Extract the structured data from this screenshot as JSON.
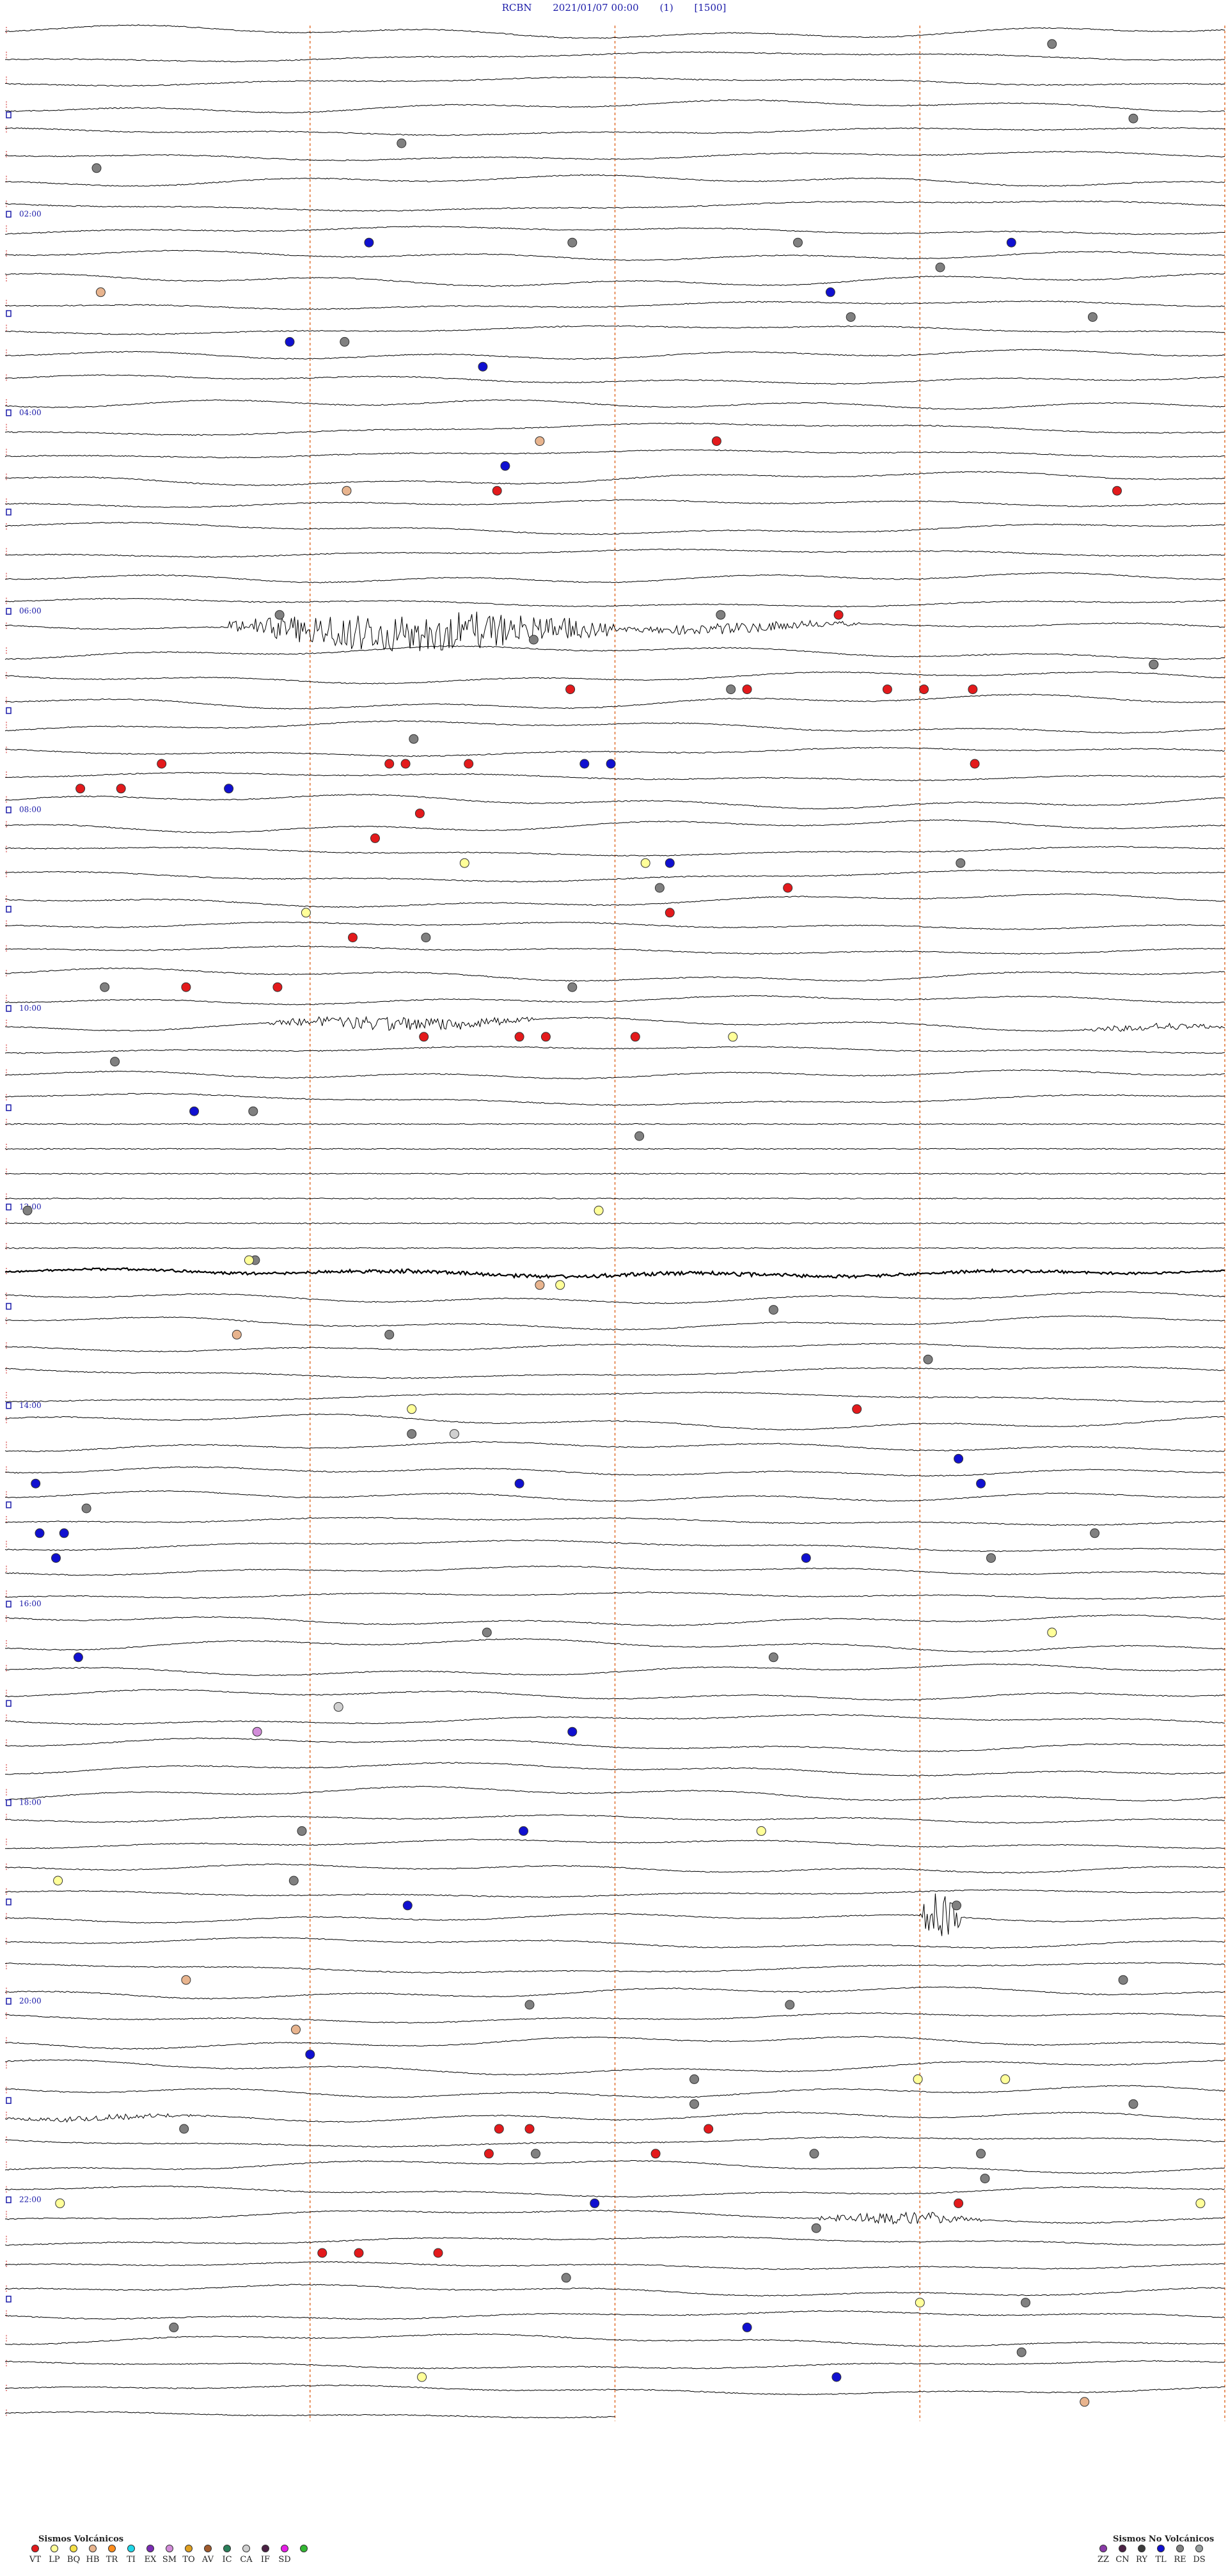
{
  "header": {
    "station": "RCBN",
    "datetime": "2021/01/07 00:00",
    "channel": "(1)",
    "scale": "[1500]"
  },
  "chart_data": {
    "type": "helicorder",
    "rows_per_hour": 4,
    "total_rows": 96,
    "hour_labels": [
      "02:00",
      "04:00",
      "06:00",
      "08:00",
      "10:00",
      "12:00",
      "14:00",
      "16:00",
      "18:00",
      "20:00",
      "22:00"
    ],
    "hour_label_rows": [
      8,
      16,
      24,
      32,
      40,
      48,
      56,
      64,
      72,
      80,
      88
    ],
    "minute_gridlines": [
      15,
      30,
      45,
      60
    ],
    "active_segments": [
      {
        "row": 24,
        "start_min": 11,
        "end_min": 30,
        "amp": 22
      },
      {
        "row": 24,
        "start_min": 30,
        "end_min": 42,
        "amp": 6
      },
      {
        "row": 40,
        "start_min": 13,
        "end_min": 26,
        "amp": 8
      },
      {
        "row": 40,
        "start_min": 53,
        "end_min": 60,
        "amp": 4
      },
      {
        "row": 50,
        "start_min": 0,
        "end_min": 60,
        "amp": 2
      },
      {
        "row": 76,
        "start_min": 45,
        "end_min": 47,
        "amp": 28
      },
      {
        "row": 88,
        "start_min": 40,
        "end_min": 48,
        "amp": 7
      },
      {
        "row": 84,
        "start_min": 0,
        "end_min": 10,
        "amp": 3
      }
    ],
    "events": [
      {
        "row": 1,
        "min": 51.5,
        "type": "RE"
      },
      {
        "row": 4,
        "min": 55.5,
        "type": "RE"
      },
      {
        "row": 5,
        "min": 19.5,
        "type": "RE"
      },
      {
        "row": 6,
        "min": 4.5,
        "type": "RE"
      },
      {
        "row": 9,
        "min": 39,
        "type": "RE"
      },
      {
        "row": 9,
        "min": 17.9,
        "type": "TL"
      },
      {
        "row": 9,
        "min": 27.9,
        "type": "RE"
      },
      {
        "row": 9,
        "min": 49.5,
        "type": "TL"
      },
      {
        "row": 10,
        "min": 46,
        "type": "RE"
      },
      {
        "row": 11,
        "min": 4.7,
        "type": "HB"
      },
      {
        "row": 11,
        "min": 40.6,
        "type": "TL"
      },
      {
        "row": 12,
        "min": 41.6,
        "type": "RE"
      },
      {
        "row": 12,
        "min": 53.5,
        "type": "RE"
      },
      {
        "row": 13,
        "min": 14,
        "type": "TL"
      },
      {
        "row": 13,
        "min": 16.7,
        "type": "RE"
      },
      {
        "row": 14,
        "min": 23.5,
        "type": "TL"
      },
      {
        "row": 17,
        "min": 26.3,
        "type": "HB"
      },
      {
        "row": 17,
        "min": 35,
        "type": "VT"
      },
      {
        "row": 18,
        "min": 24.6,
        "type": "TL"
      },
      {
        "row": 19,
        "min": 24.2,
        "type": "VT"
      },
      {
        "row": 19,
        "min": 16.8,
        "type": "HB"
      },
      {
        "row": 19,
        "min": 54.7,
        "type": "VT"
      },
      {
        "row": 24,
        "min": 13.5,
        "type": "RE"
      },
      {
        "row": 24,
        "min": 35.2,
        "type": "RE"
      },
      {
        "row": 24,
        "min": 41,
        "type": "VT"
      },
      {
        "row": 25,
        "min": 26,
        "type": "RE"
      },
      {
        "row": 26,
        "min": 56.5,
        "type": "VT"
      },
      {
        "row": 26,
        "min": 56.5,
        "type": "RE"
      },
      {
        "row": 27,
        "min": 27.8,
        "type": "VT"
      },
      {
        "row": 27,
        "min": 35.7,
        "type": "RE"
      },
      {
        "row": 27,
        "min": 36.5,
        "type": "VT"
      },
      {
        "row": 27,
        "min": 43.4,
        "type": "VT"
      },
      {
        "row": 27,
        "min": 45.2,
        "type": "VT"
      },
      {
        "row": 27,
        "min": 47.6,
        "type": "VT"
      },
      {
        "row": 29,
        "min": 20.1,
        "type": "RE"
      },
      {
        "row": 30,
        "min": 7.7,
        "type": "VT"
      },
      {
        "row": 30,
        "min": 19.7,
        "type": "VT"
      },
      {
        "row": 30,
        "min": 28.5,
        "type": "TL"
      },
      {
        "row": 30,
        "min": 18.9,
        "type": "VT"
      },
      {
        "row": 30,
        "min": 22.8,
        "type": "VT"
      },
      {
        "row": 30,
        "min": 29.8,
        "type": "TL"
      },
      {
        "row": 30,
        "min": 47.7,
        "type": "VT"
      },
      {
        "row": 31,
        "min": 3.7,
        "type": "VT"
      },
      {
        "row": 31,
        "min": 5.7,
        "type": "VT"
      },
      {
        "row": 31,
        "min": 11,
        "type": "TL"
      },
      {
        "row": 32,
        "min": 20.4,
        "type": "VT"
      },
      {
        "row": 33,
        "min": 18.2,
        "type": "VT"
      },
      {
        "row": 34,
        "min": 22.6,
        "type": "LP"
      },
      {
        "row": 34,
        "min": 31.5,
        "type": "LP"
      },
      {
        "row": 34,
        "min": 32.7,
        "type": "TL"
      },
      {
        "row": 34,
        "min": 47,
        "type": "RE"
      },
      {
        "row": 35,
        "min": 32.2,
        "type": "RE"
      },
      {
        "row": 35,
        "min": 38.5,
        "type": "VT"
      },
      {
        "row": 36,
        "min": 14.8,
        "type": "LP"
      },
      {
        "row": 36,
        "min": 32.7,
        "type": "VT"
      },
      {
        "row": 37,
        "min": 17.1,
        "type": "VT"
      },
      {
        "row": 37,
        "min": 20.7,
        "type": "RE"
      },
      {
        "row": 39,
        "min": 4.9,
        "type": "RE"
      },
      {
        "row": 39,
        "min": 8.9,
        "type": "VT"
      },
      {
        "row": 39,
        "min": 13.4,
        "type": "VT"
      },
      {
        "row": 39,
        "min": 27.9,
        "type": "RE"
      },
      {
        "row": 41,
        "min": 20.6,
        "type": "VT"
      },
      {
        "row": 41,
        "min": 25.3,
        "type": "VT"
      },
      {
        "row": 41,
        "min": 26.6,
        "type": "VT"
      },
      {
        "row": 41,
        "min": 31,
        "type": "VT"
      },
      {
        "row": 41,
        "min": 35.8,
        "type": "LP"
      },
      {
        "row": 42,
        "min": 5.4,
        "type": "RE"
      },
      {
        "row": 44,
        "min": 9.3,
        "type": "TL"
      },
      {
        "row": 44,
        "min": 12.2,
        "type": "RE"
      },
      {
        "row": 45,
        "min": 31.2,
        "type": "RE"
      },
      {
        "row": 48,
        "min": 1.1,
        "type": "RE"
      },
      {
        "row": 48,
        "min": 29.2,
        "type": "LP"
      },
      {
        "row": 50,
        "min": 12.3,
        "type": "RE"
      },
      {
        "row": 50,
        "min": 12,
        "type": "LP"
      },
      {
        "row": 51,
        "min": 26.3,
        "type": "HB"
      },
      {
        "row": 51,
        "min": 27.3,
        "type": "LP"
      },
      {
        "row": 52,
        "min": 37.8,
        "type": "RE"
      },
      {
        "row": 53,
        "min": 11.4,
        "type": "HB"
      },
      {
        "row": 53,
        "min": 18.9,
        "type": "RE"
      },
      {
        "row": 54,
        "min": 45.4,
        "type": "RE"
      },
      {
        "row": 56,
        "min": 20,
        "type": "LP"
      },
      {
        "row": 56,
        "min": 41.9,
        "type": "VT"
      },
      {
        "row": 57,
        "min": 20,
        "type": "RE"
      },
      {
        "row": 57,
        "min": 22.1,
        "type": "CA"
      },
      {
        "row": 58,
        "min": 46.9,
        "type": "TL"
      },
      {
        "row": 59,
        "min": 1.5,
        "type": "TL"
      },
      {
        "row": 59,
        "min": 25.3,
        "type": "TL"
      },
      {
        "row": 59,
        "min": 48,
        "type": "TL"
      },
      {
        "row": 60,
        "min": 4,
        "type": "RE"
      },
      {
        "row": 61,
        "min": 1.7,
        "type": "TL"
      },
      {
        "row": 61,
        "min": 2.9,
        "type": "TL"
      },
      {
        "row": 61,
        "min": 53.6,
        "type": "RE"
      },
      {
        "row": 62,
        "min": 39.4,
        "type": "TL"
      },
      {
        "row": 62,
        "min": 48.5,
        "type": "RE"
      },
      {
        "row": 62,
        "min": 2.5,
        "type": "TL"
      },
      {
        "row": 65,
        "min": 23.7,
        "type": "RE"
      },
      {
        "row": 65,
        "min": 51.5,
        "type": "LP"
      },
      {
        "row": 66,
        "min": 3.6,
        "type": "TL"
      },
      {
        "row": 66,
        "min": 37.8,
        "type": "RE"
      },
      {
        "row": 68,
        "min": 16.4,
        "type": "CA"
      },
      {
        "row": 69,
        "min": 12.4,
        "type": "SM"
      },
      {
        "row": 69,
        "min": 27.9,
        "type": "TL"
      },
      {
        "row": 73,
        "min": 14.6,
        "type": "RE"
      },
      {
        "row": 73,
        "min": 25.5,
        "type": "TL"
      },
      {
        "row": 73,
        "min": 37.2,
        "type": "LP"
      },
      {
        "row": 75,
        "min": 2.6,
        "type": "LP"
      },
      {
        "row": 75,
        "min": 14.2,
        "type": "RE"
      },
      {
        "row": 76,
        "min": 19.8,
        "type": "TL"
      },
      {
        "row": 76,
        "min": 46.8,
        "type": "RE"
      },
      {
        "row": 79,
        "min": 8.9,
        "type": "HB"
      },
      {
        "row": 79,
        "min": 55,
        "type": "RE"
      },
      {
        "row": 80,
        "min": 25.8,
        "type": "RE"
      },
      {
        "row": 80,
        "min": 38.6,
        "type": "RE"
      },
      {
        "row": 81,
        "min": 14.3,
        "type": "HB"
      },
      {
        "row": 82,
        "min": 15,
        "type": "TL"
      },
      {
        "row": 83,
        "min": 33.9,
        "type": "RE"
      },
      {
        "row": 83,
        "min": 44.9,
        "type": "LP"
      },
      {
        "row": 83,
        "min": 49.2,
        "type": "LP"
      },
      {
        "row": 84,
        "min": 33.9,
        "type": "RE"
      },
      {
        "row": 84,
        "min": 55.5,
        "type": "RE"
      },
      {
        "row": 85,
        "min": 8.8,
        "type": "RE"
      },
      {
        "row": 85,
        "min": 24.3,
        "type": "VT"
      },
      {
        "row": 85,
        "min": 25.8,
        "type": "VT"
      },
      {
        "row": 85,
        "min": 34.6,
        "type": "VT"
      },
      {
        "row": 86,
        "min": 23.8,
        "type": "VT"
      },
      {
        "row": 86,
        "min": 26.1,
        "type": "RE"
      },
      {
        "row": 86,
        "min": 32,
        "type": "VT"
      },
      {
        "row": 86,
        "min": 39.8,
        "type": "RE"
      },
      {
        "row": 86,
        "min": 48,
        "type": "RE"
      },
      {
        "row": 87,
        "min": 48.2,
        "type": "RE"
      },
      {
        "row": 88,
        "min": 2.7,
        "type": "LP"
      },
      {
        "row": 88,
        "min": 29,
        "type": "TL"
      },
      {
        "row": 88,
        "min": 46.9,
        "type": "VT"
      },
      {
        "row": 88,
        "min": 58.8,
        "type": "LP"
      },
      {
        "row": 89,
        "min": 39.9,
        "type": "RE"
      },
      {
        "row": 90,
        "min": 15.6,
        "type": "VT"
      },
      {
        "row": 90,
        "min": 17.4,
        "type": "VT"
      },
      {
        "row": 90,
        "min": 21.3,
        "type": "VT"
      },
      {
        "row": 91,
        "min": 27.6,
        "type": "RE"
      },
      {
        "row": 92,
        "min": 45,
        "type": "LP"
      },
      {
        "row": 92,
        "min": 50.2,
        "type": "RE"
      },
      {
        "row": 93,
        "min": 8.3,
        "type": "RE"
      },
      {
        "row": 93,
        "min": 36.5,
        "type": "TL"
      },
      {
        "row": 94,
        "min": 50,
        "type": "RE"
      },
      {
        "row": 95,
        "min": 20.5,
        "type": "LP"
      },
      {
        "row": 95,
        "min": 40.9,
        "type": "TL"
      },
      {
        "row": 96,
        "min": 53.1,
        "type": "HB"
      }
    ]
  },
  "legend_volcanic": {
    "title": "Sismos Volcánicos",
    "items": [
      {
        "code": "VT",
        "color": "#e31a1c"
      },
      {
        "code": "LP",
        "color": "#ffff99"
      },
      {
        "code": "BQ",
        "color": "#f5e14a"
      },
      {
        "code": "HB",
        "color": "#e8b48e"
      },
      {
        "code": "TR",
        "color": "#ff8c1a"
      },
      {
        "code": "TI",
        "color": "#1fd7e8"
      },
      {
        "code": "EX",
        "color": "#7b2cb5"
      },
      {
        "code": "SM",
        "color": "#d28cd9"
      },
      {
        "code": "TO",
        "color": "#e0a020"
      },
      {
        "code": "AV",
        "color": "#a05a2c"
      },
      {
        "code": "IC",
        "color": "#2a7f5a"
      },
      {
        "code": "CA",
        "color": "#d0d0d0"
      },
      {
        "code": "IF",
        "color": "#4b2245"
      },
      {
        "code": "SD",
        "color": "#e61ee6"
      },
      {
        "code": "",
        "color": "#33b833"
      }
    ]
  },
  "legend_nonvolcanic": {
    "title": "Sismos No Volcánicos",
    "items": [
      {
        "code": "ZZ",
        "color": "#8a3aa8"
      },
      {
        "code": "CN",
        "color": "#4b2245"
      },
      {
        "code": "RY",
        "color": "#3b3b3b"
      },
      {
        "code": "TL",
        "color": "#1010d0"
      },
      {
        "code": "RE",
        "color": "#808080"
      },
      {
        "code": "DS",
        "color": "#9aa0a0"
      }
    ]
  },
  "colors": {
    "trace": "#000000",
    "hour_marker": "#1a1aa8",
    "minute_grid": "#e07030",
    "side_marker": "#cc2020"
  }
}
